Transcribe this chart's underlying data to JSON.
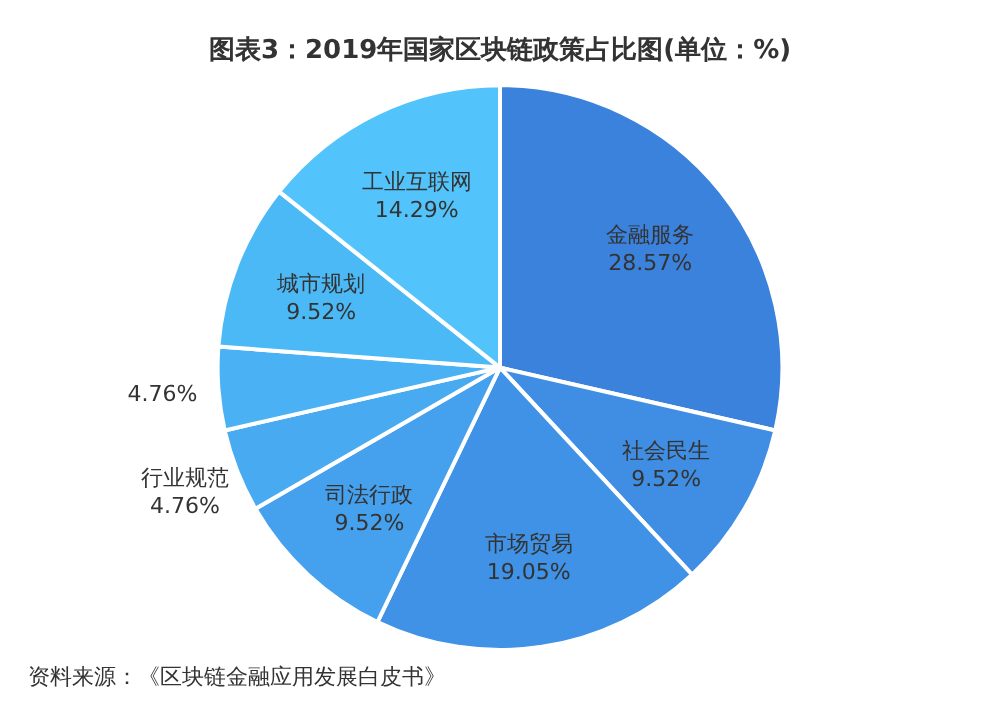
{
  "chart_data": {
    "type": "pie",
    "title": "图表3：2019年国家区块链政策占比图(单位：%)",
    "categories": [
      "金融服务",
      "社会民生",
      "市场贸易",
      "司法行政",
      "行业规范",
      null,
      "城市规划",
      "工业互联网"
    ],
    "values": [
      28.57,
      9.52,
      19.05,
      9.52,
      4.76,
      4.76,
      9.52,
      14.29
    ],
    "colors": [
      "#3b82dc",
      "#3f8ee4",
      "#3f92e6",
      "#45a0ee",
      "#48aaf1",
      "#4ab2f4",
      "#4cb9f7",
      "#52c4fb"
    ],
    "value_labels": [
      "28.57%",
      "9.52%",
      "19.05%",
      "9.52%",
      "4.76%",
      "4.76%",
      "9.52%",
      "14.29%"
    ],
    "annotations": [
      "资料来源：《区块链金融应用发展白皮书》"
    ]
  }
}
